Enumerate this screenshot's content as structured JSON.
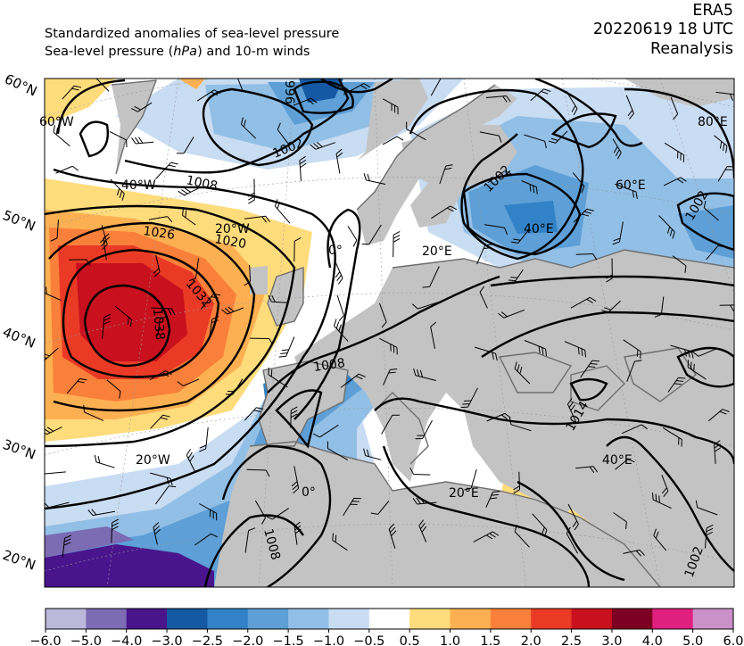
{
  "header": {
    "line1": "Standardized anomalies of sea-level pressure",
    "line2_prefix": "Sea-level pressure (",
    "line2_unit": "hPa",
    "line2_suffix": ") and 10-m winds",
    "dataset": "ERA5",
    "datetime": "20220619 18 UTC",
    "product": "Reanalysis"
  },
  "lat_labels": [
    "60°N",
    "50°N",
    "40°N",
    "30°N",
    "20°N"
  ],
  "lon_labels": [
    "60°W",
    "40°W",
    "20°W",
    "20°W",
    "0°",
    "0°",
    "20°E",
    "20°E",
    "40°E",
    "40°E",
    "60°E",
    "80°E"
  ],
  "isobar_labels": [
    "1026",
    "1020",
    "1032",
    "1038",
    "1008",
    "1008",
    "1002",
    "1002",
    "1002",
    "1008",
    "996",
    "1014",
    "1002"
  ],
  "colorbar": {
    "ticks": [
      "−6.0",
      "−5.0",
      "−4.0",
      "−3.0",
      "−2.5",
      "−2.0",
      "−1.5",
      "−1.0",
      "−0.5",
      "0.5",
      "1.0",
      "1.5",
      "2.0",
      "2.5",
      "3.0",
      "4.0",
      "5.0",
      "6.0"
    ],
    "colors": [
      "#bcb8dc",
      "#7b6cb4",
      "#4a148c",
      "#1558a3",
      "#3182c6",
      "#5d9fd6",
      "#92bfe6",
      "#c8dcf2",
      "#ffffff",
      "#fedc7c",
      "#fdb052",
      "#f9803a",
      "#ea3a25",
      "#c9101e",
      "#7d0022",
      "#e0207f",
      "#cc90c9"
    ]
  },
  "colors": {
    "land": "#c3c3c3",
    "ocean_neutral": "#ffffff",
    "contour": "#000000",
    "coast": "#6e6e6e"
  }
}
